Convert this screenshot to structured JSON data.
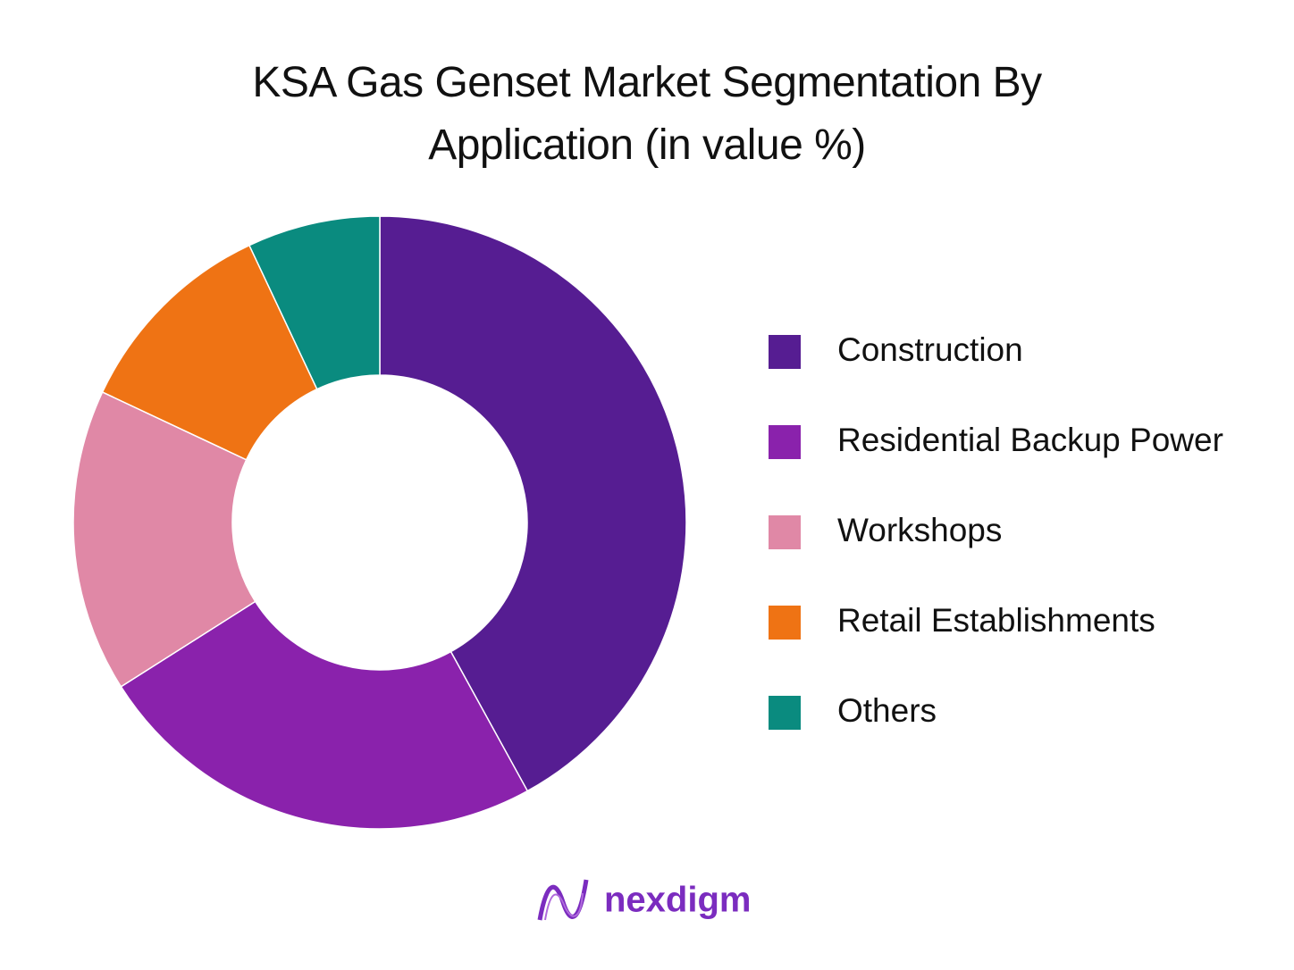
{
  "chart_data": {
    "type": "donut",
    "title": "KSA Gas Genset Market Segmentation By Application (in value %)",
    "categories": [
      "Construction",
      "Residential Backup Power",
      "Workshops",
      "Retail Establishments",
      "Others"
    ],
    "values": [
      42,
      24,
      16,
      11,
      7
    ],
    "colors": [
      "#561d92",
      "#8a22ac",
      "#e088a6",
      "#ef7314",
      "#0a8b7f"
    ],
    "legend": "right"
  },
  "brand": "nexdigm"
}
